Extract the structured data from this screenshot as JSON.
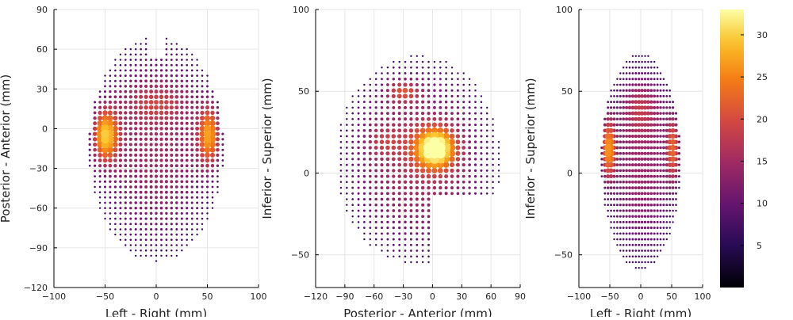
{
  "chart_data": [
    {
      "type": "scatter",
      "panel": "left",
      "xlabel": "Left - Right (mm)",
      "ylabel": "Posterior - Anterior (mm)",
      "xlim": [
        -100,
        100
      ],
      "ylim": [
        -120,
        90
      ],
      "xticks": [
        -100,
        -50,
        0,
        50,
        100
      ],
      "yticks": [
        -120,
        -90,
        -60,
        -30,
        0,
        30,
        60,
        90
      ],
      "grid": true
    },
    {
      "type": "scatter",
      "panel": "middle",
      "xlabel": "Posterior - Anterior (mm)",
      "ylabel": "Inferior - Superior (mm)",
      "xlim": [
        -120,
        90
      ],
      "ylim": [
        -70,
        100
      ],
      "xticks": [
        -120,
        -90,
        -60,
        -30,
        0,
        30,
        60,
        90
      ],
      "yticks": [
        -50,
        0,
        50,
        100
      ],
      "grid": true
    },
    {
      "type": "scatter",
      "panel": "right",
      "xlabel": "Left - Right (mm)",
      "ylabel": "Inferior - Superior (mm)",
      "xlim": [
        -100,
        100
      ],
      "ylim": [
        -70,
        100
      ],
      "xticks": [
        -100,
        -50,
        0,
        50,
        100
      ],
      "yticks": [
        -50,
        0,
        50,
        100
      ],
      "grid": true
    }
  ],
  "colorbar": {
    "colormap": "inferno",
    "range": [
      0,
      33
    ],
    "ticks": [
      5,
      10,
      15,
      20,
      25,
      30
    ]
  }
}
